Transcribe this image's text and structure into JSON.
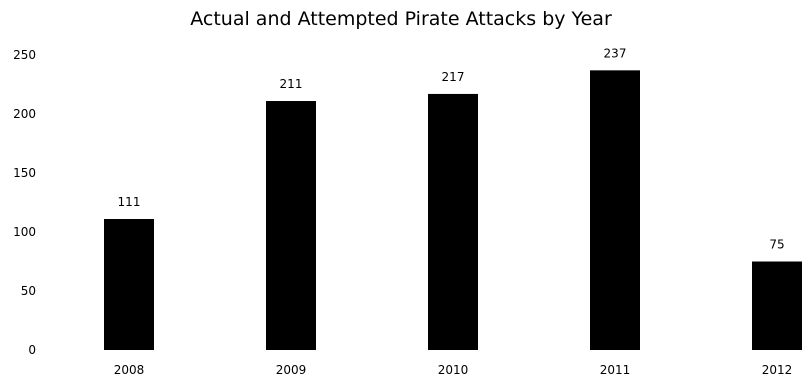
{
  "chart_data": {
    "type": "bar",
    "title": "Actual and Attempted Pirate Attacks by Year",
    "categories": [
      "2008",
      "2009",
      "2010",
      "2011",
      "2012"
    ],
    "values": [
      111,
      211,
      217,
      237,
      75
    ],
    "data_labels": [
      "111",
      "211",
      "217",
      "237",
      "75"
    ],
    "ylim": [
      0,
      250
    ],
    "yticks": [
      0,
      50,
      100,
      150,
      200,
      250
    ],
    "xlabel": "",
    "ylabel": "",
    "grid": false,
    "legend": "none",
    "bar_color": "#000000"
  }
}
